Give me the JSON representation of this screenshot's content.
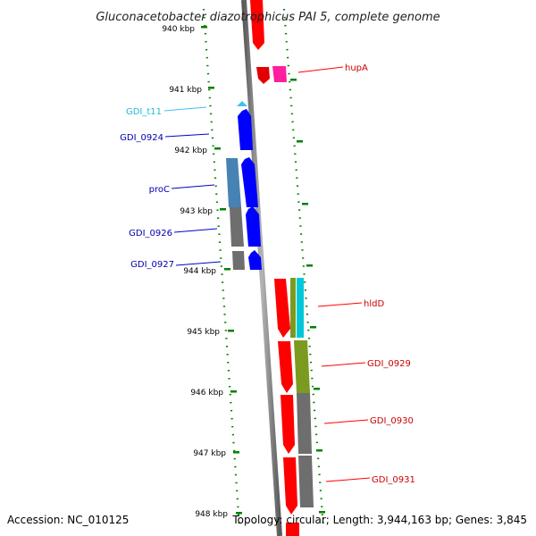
{
  "title": "Gluconacetobacter diazotrophicus PAI 5, complete genome",
  "footer": {
    "accession": "Accession: NC_010125",
    "topology": "Topology: circular; Length: 3,944,163 bp; Genes: 3,845"
  },
  "colors": {
    "forward": "#ff0000",
    "reverse": "#0000ff",
    "grey": "#6e6e6e",
    "steelblue": "#4682b4",
    "olive": "#7a9a20",
    "cyan": "#00c8d8",
    "pink": "#ff20a0",
    "lightblue": "#40c0f0",
    "tick": "#008000"
  },
  "kbp_ticks": [
    "940 kbp",
    "941 kbp",
    "942 kbp",
    "943 kbp",
    "944 kbp",
    "945 kbp",
    "946 kbp",
    "947 kbp",
    "948 kbp"
  ],
  "gene_labels": [
    {
      "text": "hupA",
      "strand": "forward"
    },
    {
      "text": "GDI_t11",
      "strand": "trna"
    },
    {
      "text": "GDI_0924",
      "strand": "reverse"
    },
    {
      "text": "proC",
      "strand": "reverse"
    },
    {
      "text": "GDI_0926",
      "strand": "reverse"
    },
    {
      "text": "GDI_0927",
      "strand": "reverse"
    },
    {
      "text": "hldD",
      "strand": "forward"
    },
    {
      "text": "GDI_0929",
      "strand": "forward"
    },
    {
      "text": "GDI_0930",
      "strand": "forward"
    },
    {
      "text": "GDI_0931",
      "strand": "forward"
    }
  ]
}
